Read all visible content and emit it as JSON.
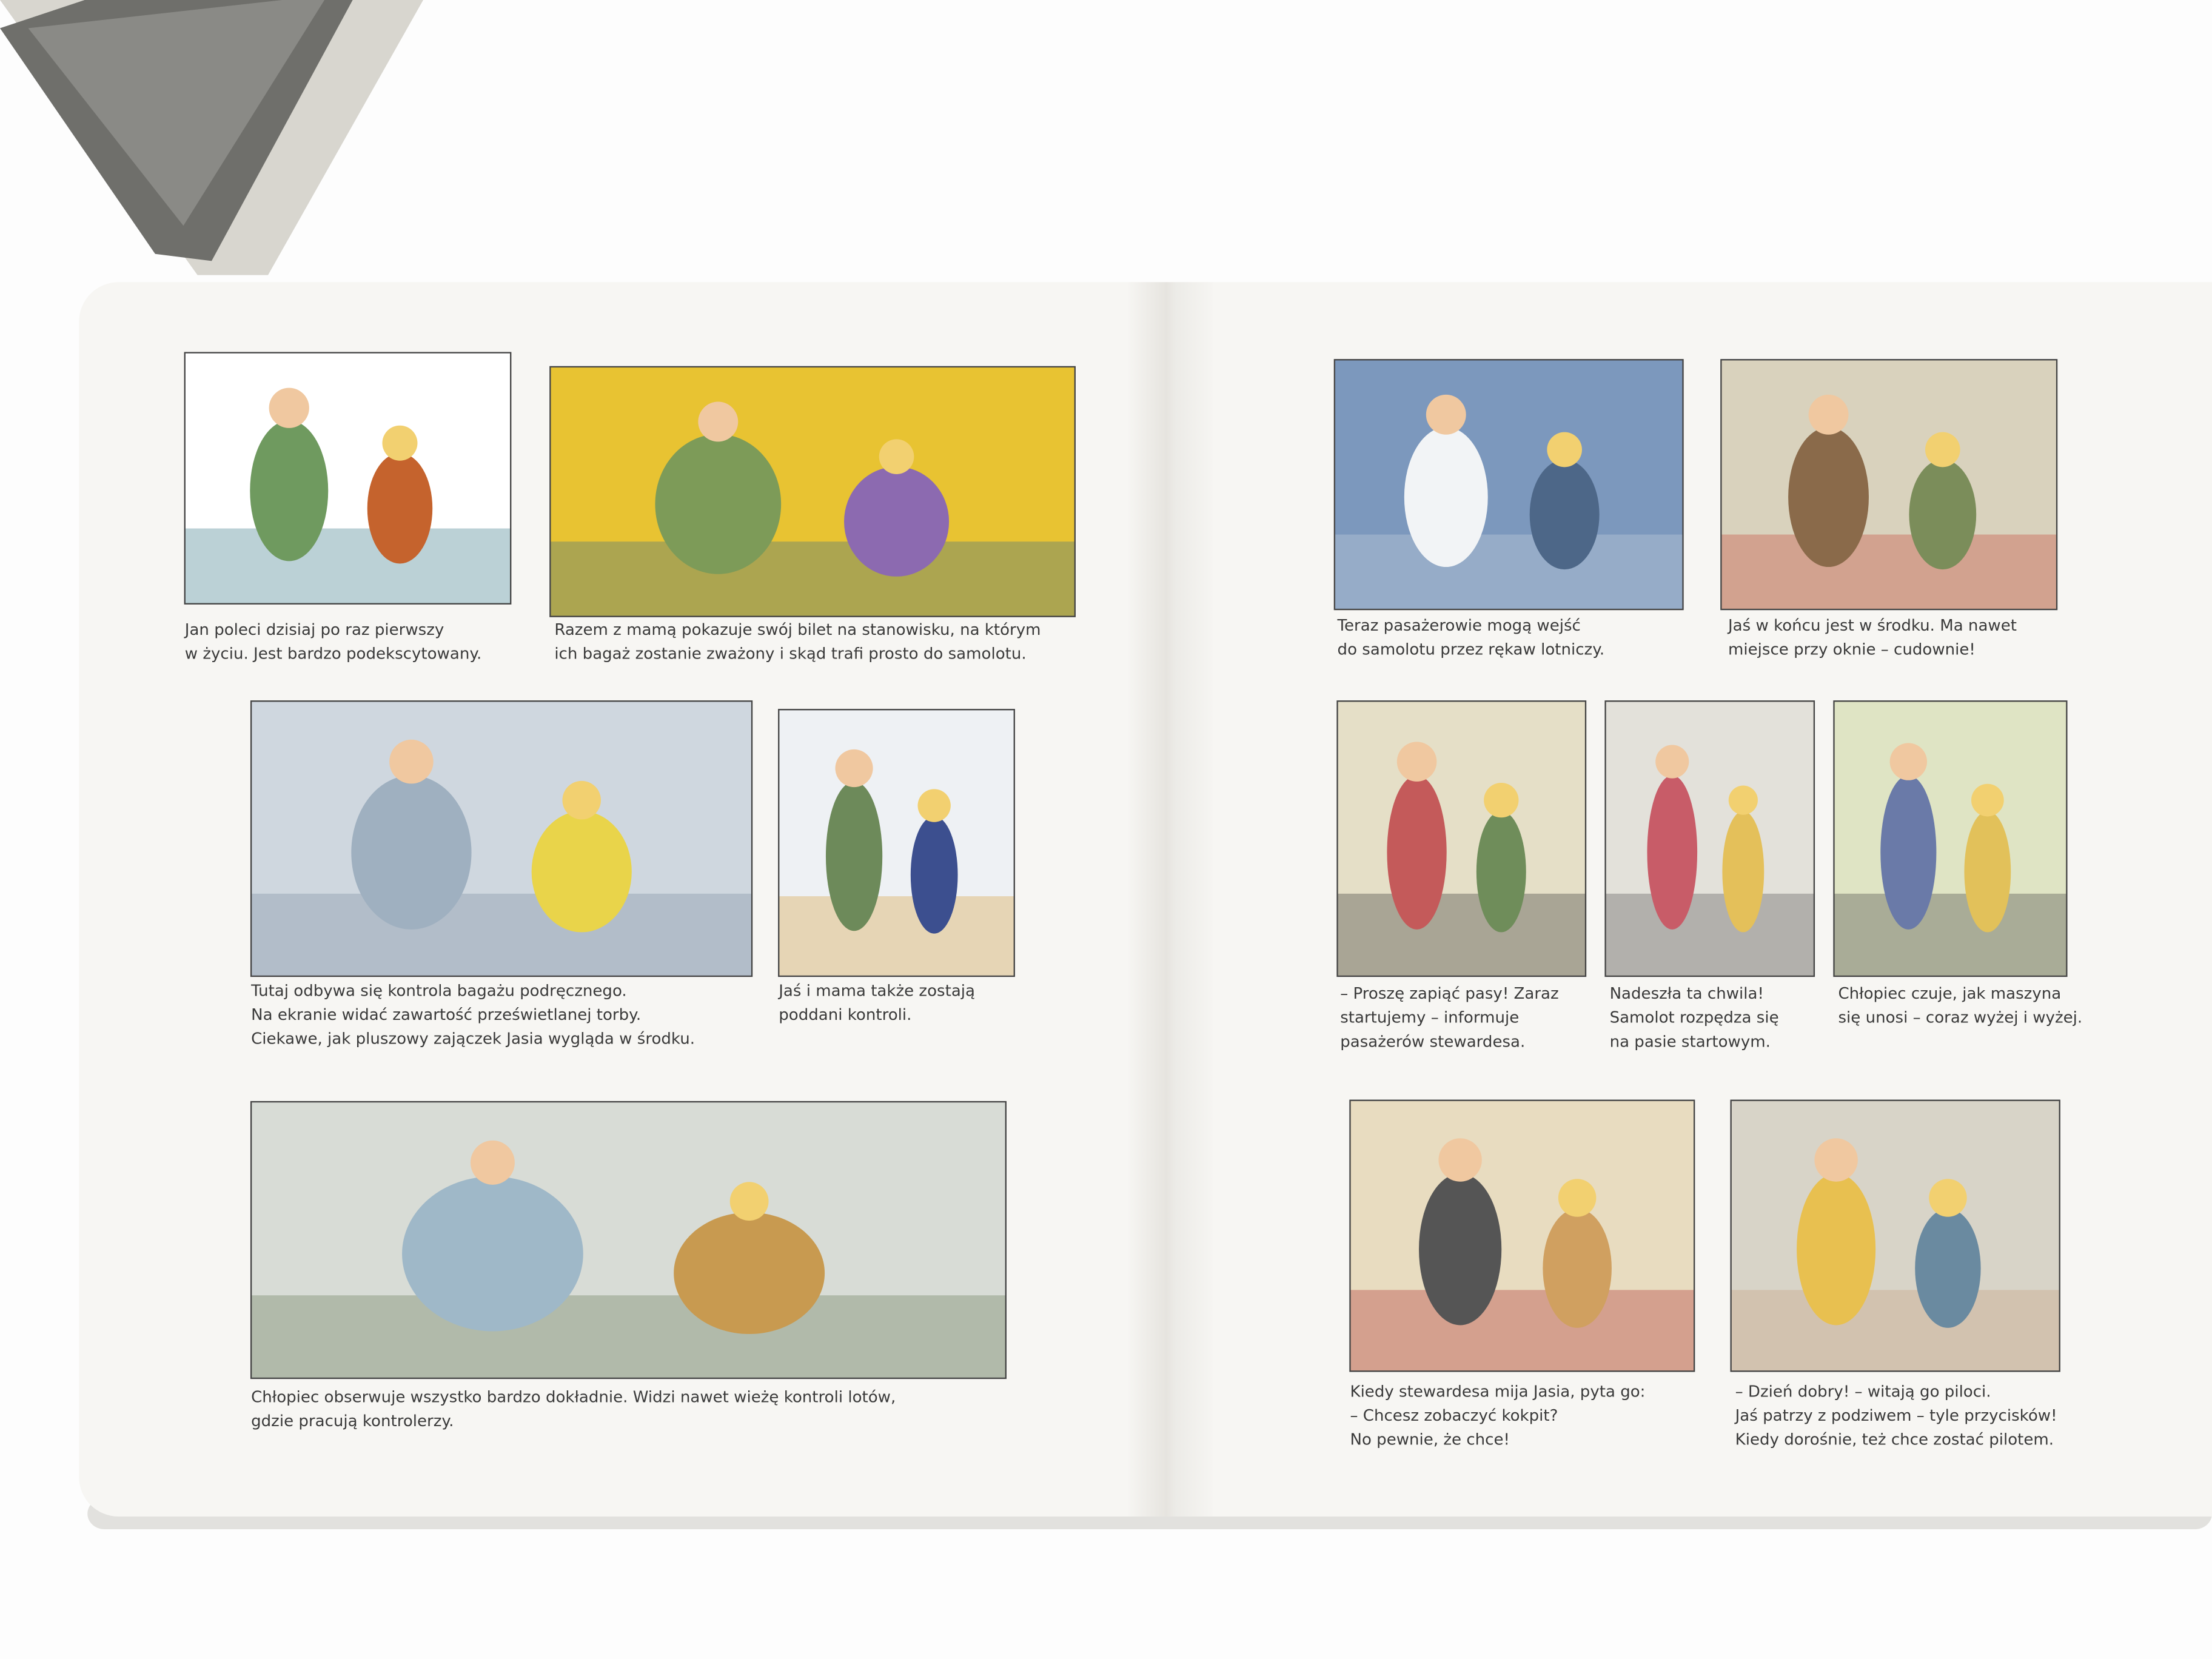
{
  "panels": [
    {
      "caption": [
        "Jan poleci dzisiaj po raz pierwszy",
        "w życiu. Jest bardzo podekscytowany."
      ]
    },
    {
      "caption": [
        "Razem z mamą pokazuje swój bilet na stanowisku, na którym",
        "ich bagaż zostanie zważony i skąd trafi prosto do samolotu."
      ]
    },
    {
      "caption": [
        "Tutaj odbywa się kontrola bagażu podręcznego.",
        "Na ekranie widać zawartość prześwietlanej torby.",
        "Ciekawe, jak pluszowy zajączek Jasia wygląda w środku."
      ]
    },
    {
      "caption": [
        "Jaś i mama także zostają",
        "poddani kontroli."
      ]
    },
    {
      "caption": [
        "Chłopiec obserwuje wszystko bardzo dokładnie. Widzi nawet wieżę kontroli lotów,",
        "gdzie pracują kontrolerzy."
      ]
    },
    {
      "caption": [
        "Teraz pasażerowie mogą wejść",
        "do samolotu przez rękaw lotniczy."
      ]
    },
    {
      "caption": [
        "Jaś w końcu jest w środku. Ma nawet",
        "miejsce przy oknie – cudownie!"
      ]
    },
    {
      "caption": [
        "– Proszę zapiąć pasy! Zaraz",
        "startujemy – informuje",
        "pasażerów stewardesa."
      ]
    },
    {
      "caption": [
        "Nadeszła ta chwila!",
        "Samolot rozpędza się",
        "na pasie startowym."
      ]
    },
    {
      "caption": [
        "Chłopiec czuje, jak maszyna",
        "się unosi – coraz wyżej i wyżej."
      ]
    },
    {
      "caption": [
        "Kiedy stewardesa mija Jasia, pyta go:",
        "– Chcesz zobaczyć kokpit?",
        "No pewnie, że chce!"
      ]
    },
    {
      "caption": [
        "– Dzień dobry! – witają go piloci.",
        "Jaś patrzy z podziwem – tyle przycisków!",
        "Kiedy dorośnie, też chce zostać pilotem."
      ]
    }
  ]
}
